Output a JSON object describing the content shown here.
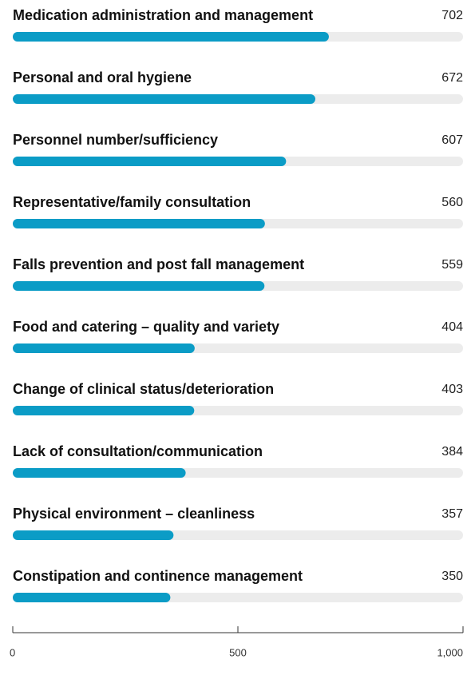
{
  "chart_data": {
    "type": "bar",
    "orientation": "horizontal",
    "categories": [
      "Medication administration and management",
      "Personal and oral hygiene",
      "Personnel number/sufficiency",
      "Representative/family consultation",
      "Falls prevention and post fall management",
      "Food and catering – quality and variety",
      "Change of clinical status/deterioration",
      "Lack of consultation/communication",
      "Physical environment – cleanliness",
      "Constipation and continence management"
    ],
    "values": [
      702,
      672,
      607,
      560,
      559,
      404,
      403,
      384,
      357,
      350
    ],
    "color": "#0b9cc6",
    "xlim": [
      0,
      1000
    ],
    "xticks": [
      0,
      500,
      {
        "value": 1000,
        "label": "1,000"
      }
    ]
  }
}
